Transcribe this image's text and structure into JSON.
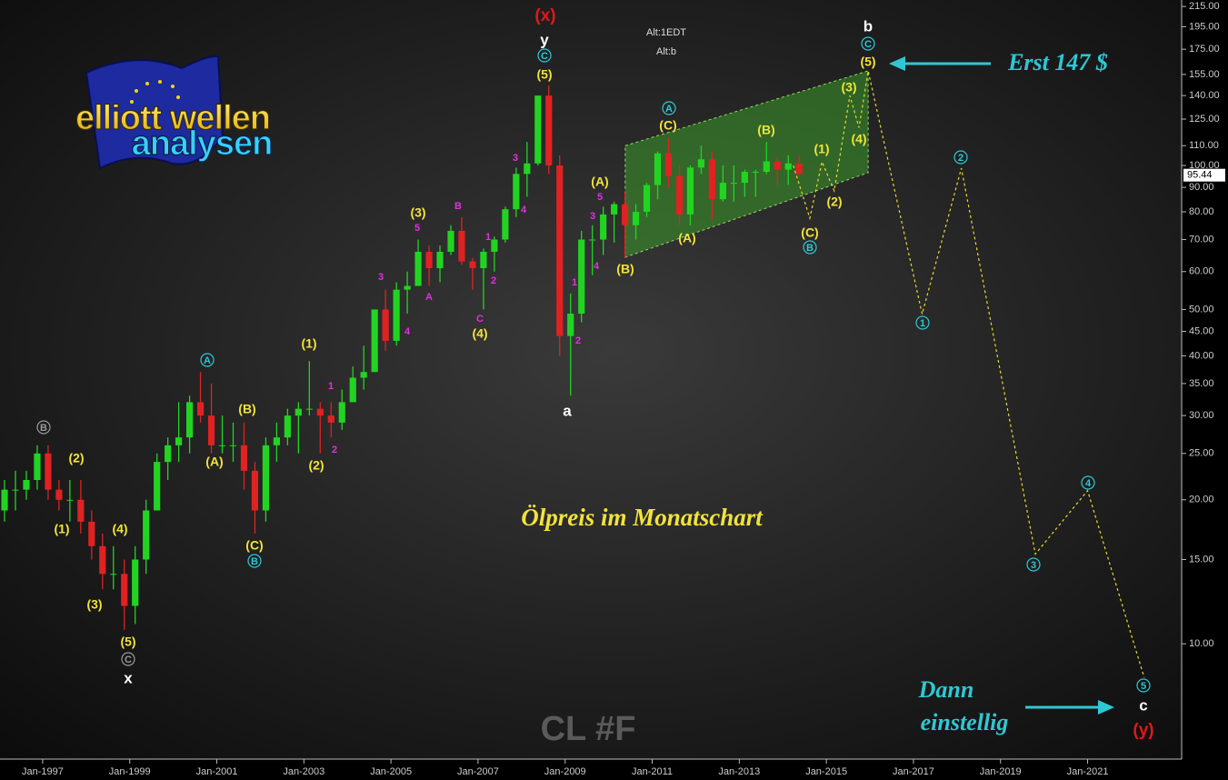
{
  "chart_data": {
    "type": "candlestick",
    "title": "Ölpreis im Monatschart",
    "watermark": "CL #F",
    "alt_labels": [
      "Alt:1EDT",
      "Alt:b"
    ],
    "logo": [
      "elliott wellen",
      "analysen"
    ],
    "note_top": "Erst 147 $",
    "note_bottom": [
      "Dann",
      "einstellig"
    ],
    "log_scale": true,
    "xlim": [
      1996.02,
      2023.16
    ],
    "ylim": [
      5.74,
      221.8
    ],
    "xticks": [
      {
        "value": 1997,
        "label": "Jan-1997"
      },
      {
        "value": 1999,
        "label": "Jan-1999"
      },
      {
        "value": 2001,
        "label": "Jan-2001"
      },
      {
        "value": 2003,
        "label": "Jan-2003"
      },
      {
        "value": 2005,
        "label": "Jan-2005"
      },
      {
        "value": 2007,
        "label": "Jan-2007"
      },
      {
        "value": 2009,
        "label": "Jan-2009"
      },
      {
        "value": 2011,
        "label": "Jan-2011"
      },
      {
        "value": 2013,
        "label": "Jan-2013"
      },
      {
        "value": 2015,
        "label": "Jan-2015"
      },
      {
        "value": 2017,
        "label": "Jan-2017"
      },
      {
        "value": 2019,
        "label": "Jan-2019"
      },
      {
        "value": 2021,
        "label": "Jan-2021"
      }
    ],
    "yticks": [
      {
        "value": 10,
        "label": "10.00"
      },
      {
        "value": 15,
        "label": "15.00"
      },
      {
        "value": 20,
        "label": "20.00"
      },
      {
        "value": 25,
        "label": "25.00"
      },
      {
        "value": 30,
        "label": "30.00"
      },
      {
        "value": 35,
        "label": "35.00"
      },
      {
        "value": 40,
        "label": "40.00"
      },
      {
        "value": 45,
        "label": "45.00"
      },
      {
        "value": 50,
        "label": "50.00"
      },
      {
        "value": 60,
        "label": "60.00"
      },
      {
        "value": 70,
        "label": "70.00"
      },
      {
        "value": 80,
        "label": "80.00"
      },
      {
        "value": 90,
        "label": "90.00"
      },
      {
        "value": 100,
        "label": "100.00"
      },
      {
        "value": 110,
        "label": "110.00"
      },
      {
        "value": 125,
        "label": "125.00"
      },
      {
        "value": 140,
        "label": "140.00"
      },
      {
        "value": 155,
        "label": "155.00"
      },
      {
        "value": 175,
        "label": "175.00"
      },
      {
        "value": 195,
        "label": "195.00"
      },
      {
        "value": 215,
        "label": "215.00"
      }
    ],
    "last_price": 95.44,
    "up_color": "#22d422",
    "down_color": "#e02222",
    "candles": {
      "x": [
        1996.125,
        1996.375,
        1996.625,
        1996.875,
        1997.125,
        1997.375,
        1997.625,
        1997.875,
        1998.125,
        1998.375,
        1998.625,
        1998.875,
        1999.125,
        1999.375,
        1999.625,
        1999.875,
        2000.125,
        2000.375,
        2000.625,
        2000.875,
        2001.125,
        2001.375,
        2001.625,
        2001.875,
        2002.125,
        2002.375,
        2002.625,
        2002.875,
        2003.125,
        2003.375,
        2003.625,
        2003.875,
        2004.125,
        2004.375,
        2004.625,
        2004.875,
        2005.125,
        2005.375,
        2005.625,
        2005.875,
        2006.125,
        2006.375,
        2006.625,
        2006.875,
        2007.125,
        2007.375,
        2007.625,
        2007.875,
        2008.125,
        2008.375,
        2008.625,
        2008.875,
        2009.125,
        2009.375,
        2009.625,
        2009.875,
        2010.125,
        2010.375,
        2010.625,
        2010.875,
        2011.125,
        2011.375,
        2011.625,
        2011.875,
        2012.125,
        2012.375,
        2012.625,
        2012.875,
        2013.125,
        2013.375,
        2013.625,
        2013.875,
        2014.125,
        2014.375
      ],
      "open": [
        19,
        21,
        21,
        22,
        25,
        21,
        20,
        20,
        18,
        16,
        14,
        14,
        12,
        15,
        19,
        24,
        26,
        27,
        32,
        30,
        26,
        26,
        26,
        23,
        19,
        26,
        27,
        30,
        31,
        31,
        30,
        29,
        32,
        36,
        37,
        50,
        43,
        55,
        56,
        66,
        61,
        66,
        73,
        63,
        61,
        66,
        70,
        81,
        96,
        101,
        140,
        100,
        44,
        49,
        70,
        70,
        79,
        83,
        75,
        80,
        91,
        106,
        95,
        79,
        99,
        103,
        85,
        92,
        92,
        97,
        97,
        102,
        98,
        101
      ],
      "high": [
        22,
        23,
        23,
        26,
        26,
        22,
        22,
        22,
        19,
        17,
        16,
        15,
        16,
        20,
        25,
        27,
        32,
        33,
        37,
        35,
        30,
        29,
        29,
        24,
        27,
        29,
        31,
        32,
        39,
        32,
        32,
        34,
        38,
        42,
        50,
        55,
        57,
        60,
        70,
        68,
        68,
        75,
        78,
        64,
        67,
        71,
        82,
        99,
        112,
        140,
        147,
        105,
        54,
        73,
        75,
        82,
        84,
        88,
        83,
        92,
        107,
        114,
        100,
        100,
        110,
        107,
        100,
        100,
        98,
        98,
        112,
        104,
        105,
        105
      ],
      "low": [
        18,
        19,
        20,
        21,
        20,
        19,
        18,
        17,
        15,
        13,
        13,
        10.7,
        11,
        14,
        19,
        22,
        24,
        25,
        29,
        25,
        25,
        24,
        21,
        17,
        18,
        24,
        26,
        25,
        30,
        25,
        27,
        28,
        32,
        34,
        37,
        41,
        42,
        49,
        56,
        56,
        57,
        65,
        62,
        55,
        50,
        60,
        69,
        78,
        86,
        100,
        96,
        40,
        33,
        47,
        59,
        65,
        69,
        64,
        70,
        78,
        85,
        90,
        75,
        75,
        96,
        77,
        84,
        84,
        86,
        86,
        96,
        91,
        91,
        95
      ],
      "close": [
        21,
        21,
        22,
        25,
        21,
        20,
        20,
        18,
        16,
        14,
        14,
        12,
        15,
        19,
        24,
        26,
        27,
        32,
        30,
        26,
        26,
        26,
        23,
        19,
        26,
        27,
        30,
        31,
        31,
        30,
        29,
        32,
        36,
        37,
        50,
        43,
        55,
        56,
        66,
        61,
        66,
        73,
        63,
        61,
        66,
        70,
        81,
        96,
        101,
        140,
        100,
        44,
        49,
        70,
        70,
        79,
        83,
        75,
        80,
        91,
        106,
        95,
        79,
        99,
        103,
        85,
        92,
        92,
        97,
        97,
        102,
        98,
        101,
        96
      ]
    },
    "channel": {
      "x": [
        2010.38,
        2015.96
      ],
      "upper": [
        110,
        157.7
      ],
      "lower": [
        64.3,
        96.6
      ],
      "color": "#3a9a2a"
    },
    "projection": {
      "x": [
        2014.24,
        2014.62,
        2014.9,
        2015.18,
        2015.54,
        2015.75,
        2015.96,
        2017.2,
        2018.1,
        2019.8,
        2021.0,
        2022.3
      ],
      "values": [
        100,
        77.6,
        101.8,
        88.5,
        140,
        120,
        157.7,
        48.9,
        98.7,
        15.4,
        20.9,
        8.5
      ],
      "color": "#e8d830"
    },
    "wave_labels": [
      {
        "color": "#f2e33a",
        "circled": false,
        "texts": [
          "(2)",
          "(1)",
          "(3)",
          "(4)",
          "(5)",
          "(A)",
          "(B)",
          "(C)",
          "(1)",
          "(2)",
          "(3)",
          "(4)",
          "(5)",
          "(A)",
          "(B)",
          "(C)",
          "(A)",
          "(B)",
          "(C)",
          "(1)",
          "(2)",
          "(3)",
          "(4)",
          "(5)"
        ]
      },
      {
        "color": "#e030e0",
        "circled": false,
        "texts": [
          "3",
          "1",
          "2",
          "4",
          "5",
          "A",
          "B",
          "1",
          "2",
          "C",
          "3",
          "4",
          "5",
          "3",
          "4",
          "1",
          "2"
        ]
      },
      {
        "color": "#2ec8d4",
        "circled": true,
        "texts": [
          "A",
          "B",
          "C",
          "A",
          "B",
          "C",
          "1",
          "2",
          "3",
          "4",
          "5"
        ]
      },
      {
        "color": "#9a9a9a",
        "circled": true,
        "texts": [
          "B",
          "C"
        ]
      },
      {
        "color": "#ffffff",
        "circled": false,
        "texts": [
          "x",
          "y",
          "a",
          "b",
          "c"
        ]
      },
      {
        "color": "#e01818",
        "circled": false,
        "texts": [
          "(x)",
          "(y)"
        ]
      }
    ]
  }
}
